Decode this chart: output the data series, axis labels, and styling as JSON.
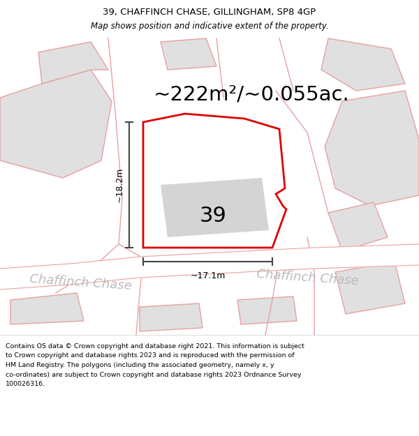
{
  "title_line1": "39, CHAFFINCH CHASE, GILLINGHAM, SP8 4GP",
  "title_line2": "Map shows position and indicative extent of the property.",
  "area_text": "~222m²/~0.055ac.",
  "label_39": "39",
  "dim_width": "~17.1m",
  "dim_height": "~18.2m",
  "street_label": "Chaffinch Chase",
  "footer_lines": [
    "Contains OS data © Crown copyright and database right 2021. This information is subject",
    "to Crown copyright and database rights 2023 and is reproduced with the permission of",
    "HM Land Registry. The polygons (including the associated geometry, namely x, y",
    "co-ordinates) are subject to Crown copyright and database rights 2023 Ordnance Survey",
    "100026316."
  ],
  "map_bg": "#ffffff",
  "plot_fill": "#ffffff",
  "plot_edge_color": "#dd0000",
  "building_fill": "#d4d4d4",
  "neighbour_fill": "#e0e0e0",
  "neighbour_edge": "#e8a0a0",
  "dim_line_color": "#444444",
  "street_text_color": "#bbbbbb",
  "title_fontsize": 9.5,
  "subtitle_fontsize": 8.5,
  "area_fontsize": 21,
  "label_fontsize": 22,
  "dim_fontsize": 9,
  "street_fontsize": 13,
  "footer_fontsize": 6.8
}
